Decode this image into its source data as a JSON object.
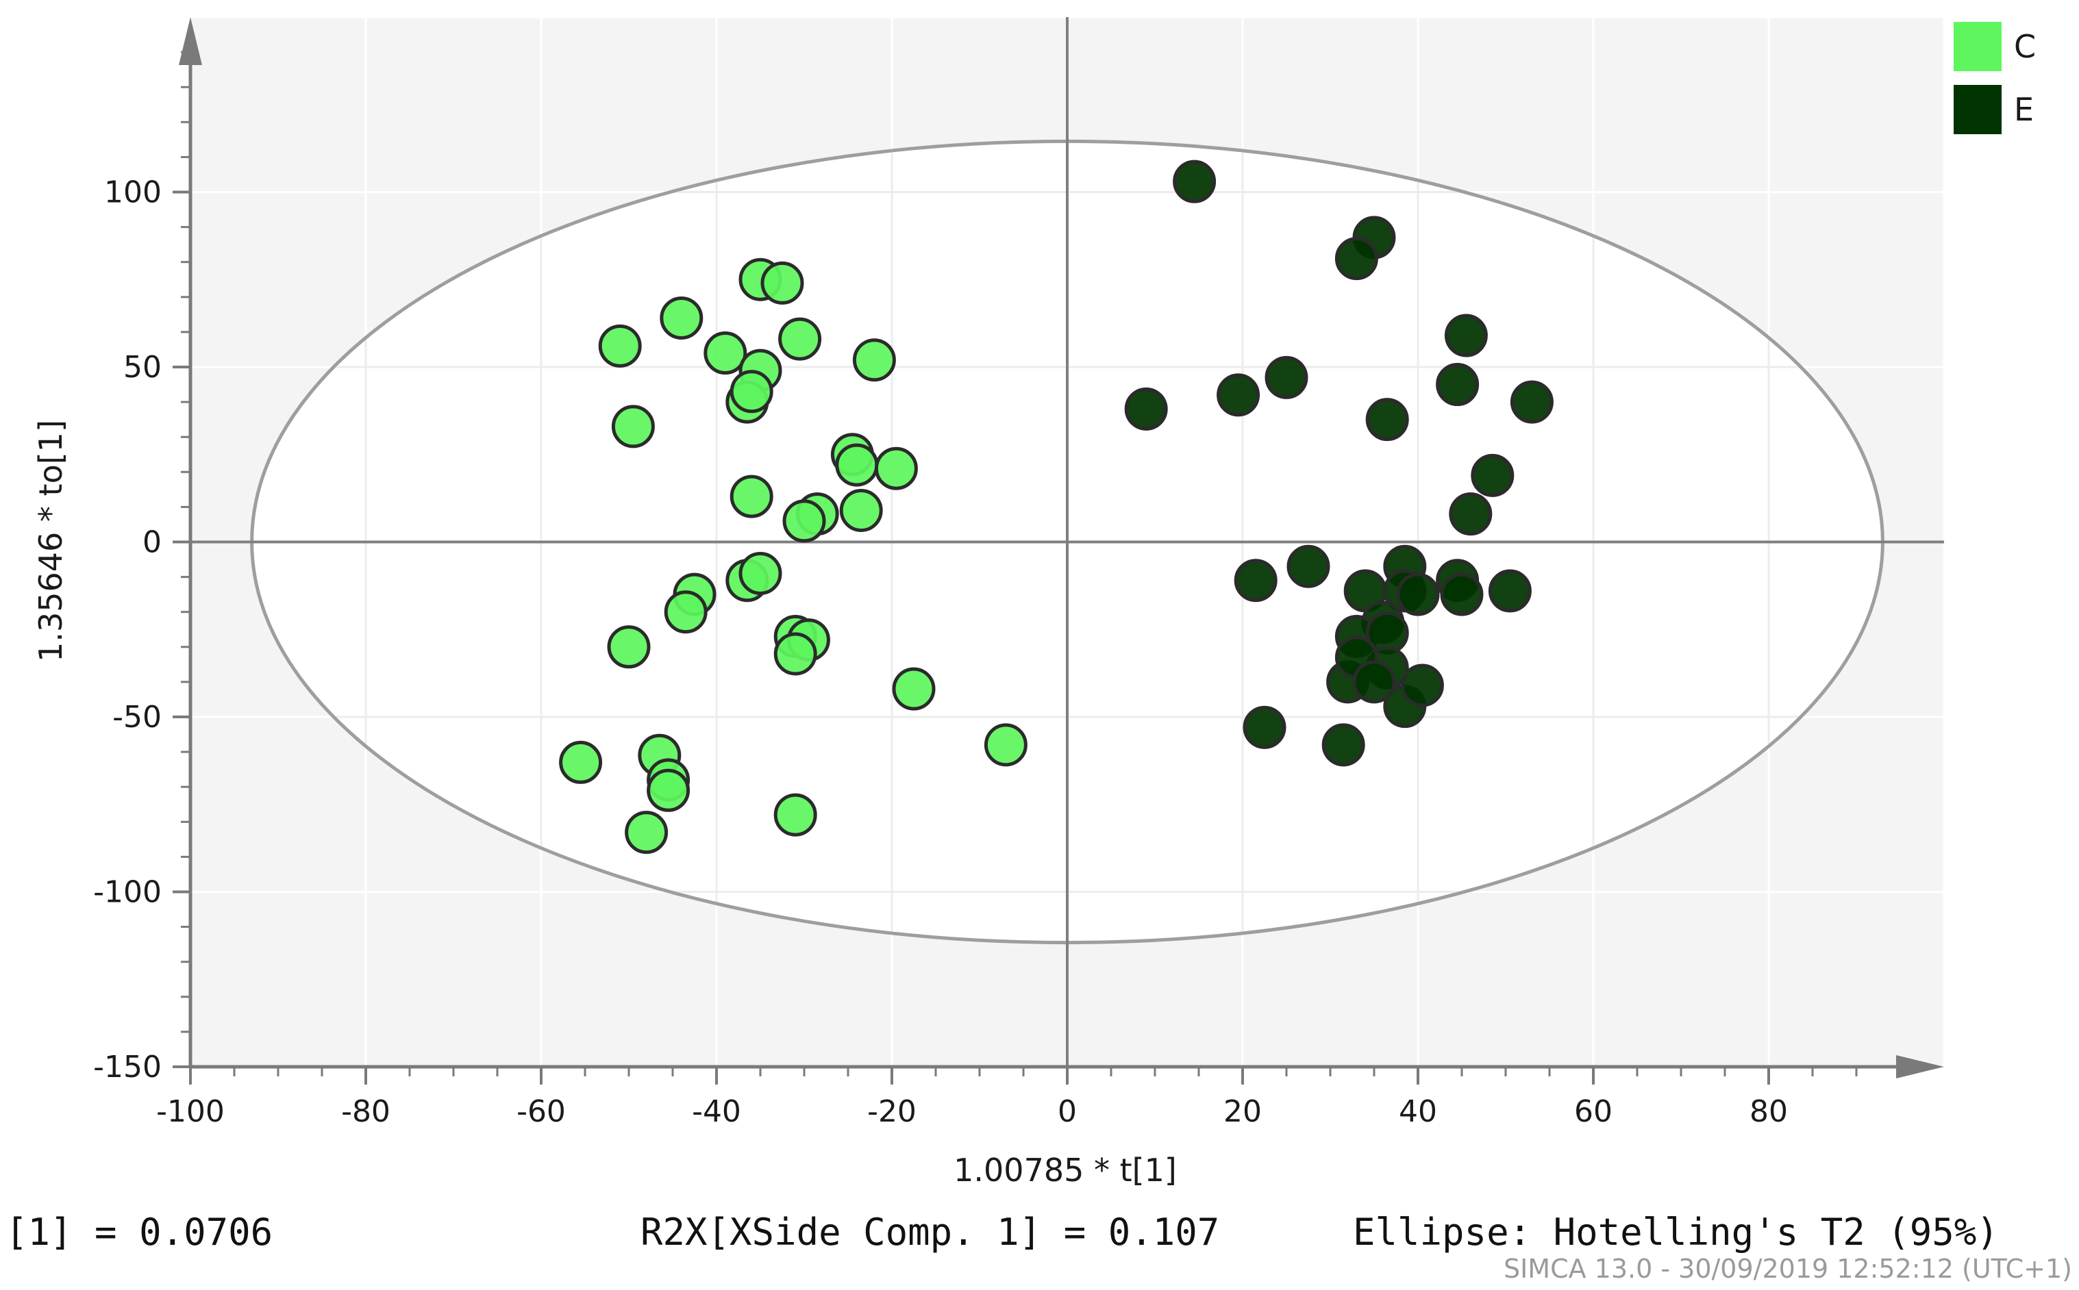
{
  "chart_data": {
    "type": "scatter",
    "title": "",
    "xlabel": "1.00785 * t[1]",
    "ylabel": "1.35646 * to[1]",
    "xlim": [
      -100,
      100
    ],
    "ylim": [
      -150,
      150
    ],
    "x_ticks": [
      -100,
      -80,
      -60,
      -40,
      -20,
      0,
      20,
      40,
      60,
      80
    ],
    "y_ticks": [
      -150,
      -100,
      -50,
      0,
      50,
      100
    ],
    "grid": true,
    "legend": "top-right",
    "ellipse": {
      "label": "Hotelling's T2 (95%)",
      "x_radius": 93,
      "y_radius": 114.5
    },
    "series": [
      {
        "name": "C",
        "color": "#5ef55e",
        "points": [
          [
            -35,
            75
          ],
          [
            -32.5,
            74
          ],
          [
            -44,
            64
          ],
          [
            -51,
            56
          ],
          [
            -39,
            54
          ],
          [
            -30.5,
            58
          ],
          [
            -22,
            52
          ],
          [
            -35,
            49
          ],
          [
            -36.5,
            40
          ],
          [
            -36,
            43
          ],
          [
            -49.5,
            33
          ],
          [
            -24.5,
            25
          ],
          [
            -24,
            22
          ],
          [
            -19.5,
            21
          ],
          [
            -36,
            13
          ],
          [
            -28.5,
            8
          ],
          [
            -30,
            6
          ],
          [
            -23.5,
            9
          ],
          [
            -36.5,
            -11
          ],
          [
            -35,
            -9
          ],
          [
            -42.5,
            -15
          ],
          [
            -43.5,
            -20
          ],
          [
            -50,
            -30
          ],
          [
            -31,
            -27
          ],
          [
            -29.5,
            -28
          ],
          [
            -31,
            -32
          ],
          [
            -17.5,
            -42
          ],
          [
            -7,
            -58
          ],
          [
            -55.5,
            -63
          ],
          [
            -46.5,
            -61
          ],
          [
            -45.5,
            -68
          ],
          [
            -45.5,
            -71
          ],
          [
            -48,
            -83
          ],
          [
            -31,
            -78
          ]
        ]
      },
      {
        "name": "E",
        "color": "#003300",
        "points": [
          [
            14.5,
            103
          ],
          [
            35,
            87
          ],
          [
            33,
            81
          ],
          [
            45.5,
            59
          ],
          [
            25,
            47
          ],
          [
            19.5,
            42
          ],
          [
            9,
            38
          ],
          [
            44.5,
            45
          ],
          [
            53,
            40
          ],
          [
            36.5,
            35
          ],
          [
            48.5,
            19
          ],
          [
            46,
            8
          ],
          [
            38.5,
            -7
          ],
          [
            27.5,
            -7
          ],
          [
            21.5,
            -11
          ],
          [
            34,
            -14
          ],
          [
            38.5,
            -14
          ],
          [
            40,
            -15
          ],
          [
            44.5,
            -11
          ],
          [
            45,
            -15
          ],
          [
            50.5,
            -14
          ],
          [
            36,
            -23
          ],
          [
            33,
            -27
          ],
          [
            36.5,
            -26
          ],
          [
            36.5,
            -36
          ],
          [
            32,
            -40
          ],
          [
            33,
            -33
          ],
          [
            35,
            -40
          ],
          [
            38.5,
            -47
          ],
          [
            40.5,
            -41
          ],
          [
            22.5,
            -53
          ],
          [
            31.5,
            -58
          ]
        ]
      }
    ]
  },
  "footer": {
    "left_stat": "[1] = 0.0706",
    "middle_stat": "R2X[XSide Comp. 1] = 0.107",
    "ellipse_label": "Ellipse: Hotelling's T2 (95%)"
  },
  "stamp": "SIMCA 13.0 - 30/09/2019 12:52:12 (UTC+1)"
}
